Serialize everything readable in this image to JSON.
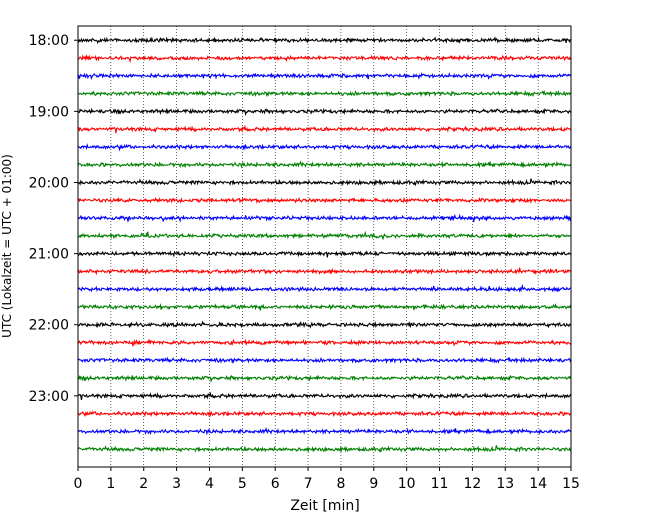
{
  "chart_data": {
    "type": "line",
    "title": "",
    "xlabel": "Zeit  [min]",
    "ylabel": "UTC (Lokalzeit = UTC + 01:00)",
    "xlim": [
      0,
      15
    ],
    "x_ticks": [
      "0",
      "1",
      "2",
      "3",
      "4",
      "5",
      "6",
      "7",
      "8",
      "9",
      "10",
      "11",
      "12",
      "13",
      "14",
      "15"
    ],
    "y_ticks": [
      {
        "label": "18:00",
        "hour": 18.0
      },
      {
        "label": "19:00",
        "hour": 19.0
      },
      {
        "label": "20:00",
        "hour": 20.0
      },
      {
        "label": "21:00",
        "hour": 21.0
      },
      {
        "label": "22:00",
        "hour": 22.0
      },
      {
        "label": "23:00",
        "hour": 23.0
      }
    ],
    "ylim_hours": [
      17.8,
      24.0
    ],
    "grid": "vertical dotted at each minute",
    "trace_interval_minutes": 15,
    "trace_start_hour": 18.0,
    "trace_count": 24,
    "trace_colors": [
      "#000000",
      "#ff0000",
      "#0000ff",
      "#008000"
    ]
  }
}
